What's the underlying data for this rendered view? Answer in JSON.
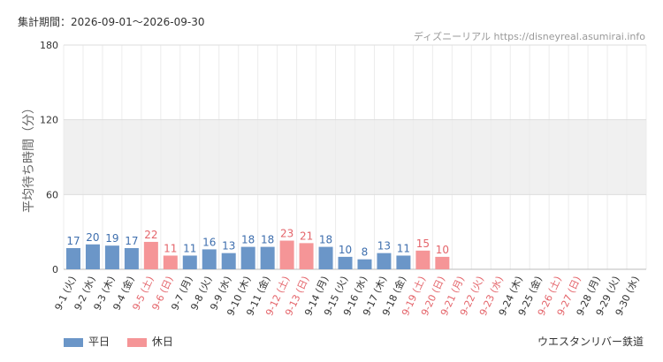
{
  "header": {
    "period": "集計期間：2026-09-01～2026-09-30",
    "credit": "ディズニーリアル https://disneyreal.asumirai.info"
  },
  "footer": {
    "attraction": "ウエスタンリバー鉄道"
  },
  "colors": {
    "weekday": "#6b96c8",
    "holiday": "#f59597",
    "weekday_label": "#3f6fae",
    "holiday_label": "#e4646a",
    "band": "#f0f0f0",
    "grid": "#dddddd"
  },
  "chart_data": {
    "type": "bar",
    "ylabel": "平均待ち時間（分）",
    "ylim": [
      0,
      180
    ],
    "yticks": [
      0,
      60,
      120,
      180
    ],
    "shaded_band": [
      60,
      120
    ],
    "legend": [
      {
        "label": "平日",
        "kind": "weekday"
      },
      {
        "label": "休日",
        "kind": "holiday"
      }
    ],
    "categories": [
      "9-1 (火)",
      "9-2 (水)",
      "9-3 (木)",
      "9-4 (金)",
      "9-5 (土)",
      "9-6 (日)",
      "9-7 (月)",
      "9-8 (火)",
      "9-9 (水)",
      "9-10 (木)",
      "9-11 (金)",
      "9-12 (土)",
      "9-13 (日)",
      "9-14 (月)",
      "9-15 (火)",
      "9-16 (水)",
      "9-17 (木)",
      "9-18 (金)",
      "9-19 (土)",
      "9-20 (日)",
      "9-21 (月)",
      "9-22 (火)",
      "9-23 (水)",
      "9-24 (木)",
      "9-25 (金)",
      "9-26 (土)",
      "9-27 (日)",
      "9-28 (月)",
      "9-29 (火)",
      "9-30 (水)"
    ],
    "day_types": [
      "weekday",
      "weekday",
      "weekday",
      "weekday",
      "holiday",
      "holiday",
      "weekday",
      "weekday",
      "weekday",
      "weekday",
      "weekday",
      "holiday",
      "holiday",
      "weekday",
      "weekday",
      "weekday",
      "weekday",
      "weekday",
      "holiday",
      "holiday",
      "holiday",
      "holiday",
      "holiday",
      "weekday",
      "weekday",
      "holiday",
      "holiday",
      "weekday",
      "weekday",
      "weekday"
    ],
    "values": [
      17,
      20,
      19,
      17,
      22,
      11,
      11,
      16,
      13,
      18,
      18,
      23,
      21,
      18,
      10,
      8,
      13,
      11,
      15,
      10,
      null,
      null,
      null,
      null,
      null,
      null,
      null,
      null,
      null,
      null
    ]
  }
}
